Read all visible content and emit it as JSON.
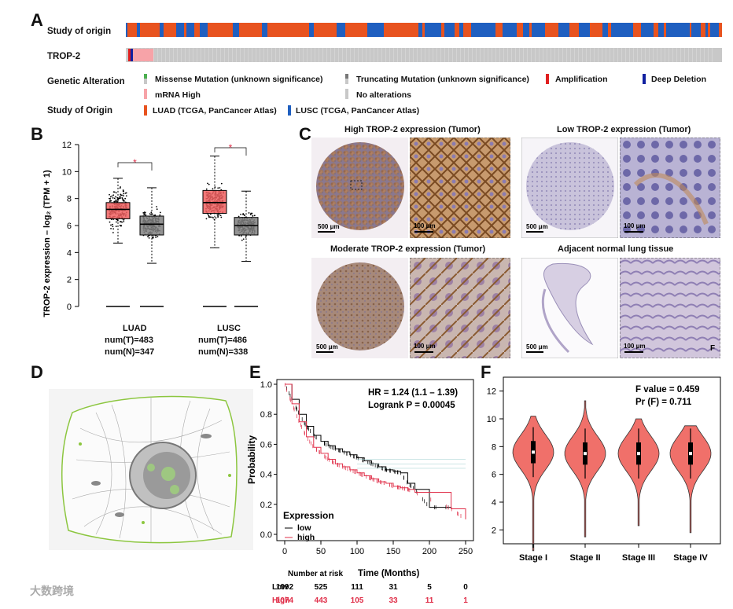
{
  "panels": {
    "a": "A",
    "b": "B",
    "c": "C",
    "d": "D",
    "e": "E",
    "f": "F"
  },
  "panelA": {
    "track1_label": "Study of origin",
    "track2_label": "TROP-2",
    "genetic_alteration_label": "Genetic Alteration",
    "study_origin_label": "Study of Origin",
    "legend": {
      "missense": "Missense Mutation (unknown significance)",
      "truncating": "Truncating Mutation (unknown significance)",
      "amplification": "Amplification",
      "deep_deletion": "Deep Deletion",
      "mrna_high": "mRNA High",
      "no_alterations": "No alterations",
      "luad": "LUAD (TCGA, PanCancer Atlas)",
      "lusc": "LUSC (TCGA, PanCancer Atlas)"
    },
    "colors": {
      "luad": "#e8531f",
      "lusc": "#1f5fc0",
      "amp": "#e02020",
      "del": "#1020a0",
      "mrna": "#f7a3a8",
      "none": "#c8c8c8",
      "missense": "#4caf50",
      "trunc": "#777777"
    }
  },
  "panelB": {
    "ylabel": "TROP-2 expression – log₂ (TPM + 1)",
    "yticks": [
      "0",
      "2",
      "4",
      "6",
      "8",
      "10",
      "12"
    ],
    "star": "*",
    "groups": [
      {
        "name": "LUAD",
        "t": "num(T)=483",
        "n": "num(N)=347"
      },
      {
        "name": "LUSC",
        "t": "num(T)=486",
        "n": "num(N)=338"
      }
    ],
    "colors": {
      "tumor": "#f06060",
      "normal": "#808080"
    }
  },
  "panelC": {
    "high_title": "High TROP-2 expression (Tumor)",
    "low_title": "Low TROP-2 expression (Tumor)",
    "moderate_title": "Moderate TROP-2 expression (Tumor)",
    "adjacent_title": "Adjacent normal lung tissue",
    "scale_500": "500 μm",
    "scale_100": "100 μm",
    "f_label": "F"
  },
  "panelE": {
    "hr": "HR = 1.24 (1.1 – 1.39)",
    "logrank": "Logrank P = 0.00045",
    "ylabel": "Probability",
    "xlabel": "Time (Months)",
    "number_at_risk": "Number at risk",
    "yticks": [
      "0.0",
      "0.2",
      "0.4",
      "0.6",
      "0.8",
      "1.0"
    ],
    "xticks": [
      "0",
      "50",
      "100",
      "150",
      "200",
      "250"
    ],
    "legend_title": "Expression",
    "legend_low": "low",
    "legend_high": "high",
    "risk_low_label": "Low",
    "risk_high_label": "High",
    "risk_low": [
      "1092",
      "525",
      "111",
      "31",
      "5",
      "0"
    ],
    "risk_high": [
      "1074",
      "443",
      "105",
      "33",
      "11",
      "1"
    ],
    "colors": {
      "low": "#000000",
      "high": "#e0304a"
    }
  },
  "panelF": {
    "fvalue": "F value = 0.459",
    "pr": "Pr (F) = 0.711",
    "yticks": [
      "2",
      "4",
      "6",
      "8",
      "10",
      "12"
    ],
    "stages": [
      "Stage I",
      "Stage II",
      "Stage III",
      "Stage IV"
    ],
    "color": "#f0706a"
  },
  "watermark": "大数跨境",
  "chart_data": [
    {
      "type": "line",
      "title": "",
      "xlabel": "Time (Months)",
      "ylabel": "Probability",
      "xlim": [
        0,
        260
      ],
      "ylim": [
        0,
        1
      ],
      "annotations": [
        "HR = 1.24 (1.1 – 1.39)",
        "Logrank P = 0.00045"
      ],
      "series": [
        {
          "name": "low",
          "x": [
            0,
            10,
            20,
            30,
            40,
            50,
            60,
            70,
            80,
            90,
            100,
            110,
            120,
            130,
            140,
            150,
            160,
            170,
            180,
            200,
            230
          ],
          "y": [
            1.0,
            0.9,
            0.8,
            0.72,
            0.66,
            0.62,
            0.59,
            0.57,
            0.55,
            0.53,
            0.51,
            0.49,
            0.47,
            0.45,
            0.43,
            0.42,
            0.41,
            0.34,
            0.3,
            0.18,
            0.18
          ]
        },
        {
          "name": "high",
          "x": [
            0,
            10,
            20,
            30,
            40,
            50,
            60,
            70,
            80,
            90,
            100,
            110,
            120,
            130,
            140,
            150,
            160,
            170,
            180,
            230,
            250
          ],
          "y": [
            1.0,
            0.87,
            0.75,
            0.65,
            0.58,
            0.54,
            0.5,
            0.47,
            0.45,
            0.43,
            0.41,
            0.39,
            0.37,
            0.35,
            0.34,
            0.32,
            0.31,
            0.3,
            0.28,
            0.17,
            0.1
          ]
        }
      ]
    },
    {
      "type": "bar",
      "title": "",
      "ylabel": "TROP-2 expression – log₂ (TPM + 1)",
      "ylim": [
        0,
        12
      ],
      "categories": [
        "LUAD",
        "LUSC"
      ],
      "series": [
        {
          "name": "T",
          "median": [
            7.2,
            7.7
          ],
          "q1": [
            6.5,
            6.9
          ],
          "q3": [
            7.7,
            8.6
          ]
        },
        {
          "name": "N",
          "median": [
            6.1,
            6.0
          ],
          "q1": [
            5.3,
            5.3
          ],
          "q3": [
            6.7,
            6.6
          ]
        }
      ]
    },
    {
      "type": "scatter",
      "title": "",
      "categories": [
        "Stage I",
        "Stage II",
        "Stage III",
        "Stage IV"
      ],
      "ylim": [
        1,
        13
      ],
      "annotations": [
        "F value = 0.459",
        "Pr (F) = 0.711"
      ],
      "series": [
        {
          "name": "",
          "median": [
            7.6,
            7.5,
            7.5,
            7.5
          ],
          "min": [
            0.5,
            1.5,
            2.3,
            1.8
          ],
          "max": [
            10.2,
            11.3,
            10.0,
            9.5
          ]
        }
      ]
    }
  ]
}
